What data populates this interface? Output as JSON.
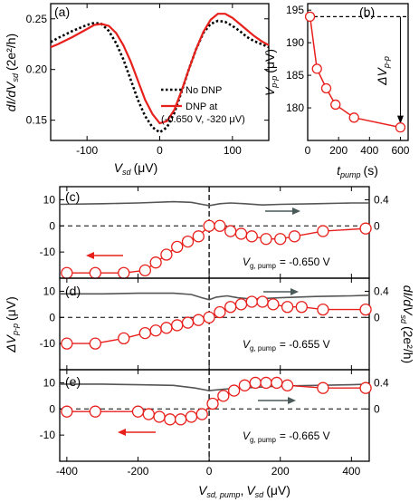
{
  "colors": {
    "dnp_red": "#e8201c",
    "no_dnp_black": "#000000",
    "trace_gray": "#555555",
    "marker_fill": "#ffffff",
    "gray_arrow": "#4a5a5a"
  },
  "chart_data": [
    {
      "panel": "(a)",
      "type": "line",
      "xlabel_main": "V",
      "xlabel_sub": "sd",
      "xlabel_unit": "(μV)",
      "ylabel_main": "dI/dV",
      "ylabel_sub": "sd",
      "ylabel_unit": "(2e²/h)",
      "xlim": [
        -150,
        150
      ],
      "ylim": [
        0.13,
        0.265
      ],
      "xticks": [
        -100,
        0,
        100
      ],
      "yticks": [
        0.15,
        0.2,
        0.25
      ],
      "ytick_labels": [
        "0.15",
        "0.20",
        "0.25"
      ],
      "legend": [
        "No DNP",
        "DNP at",
        "(-0.650 V, -320 μV)"
      ],
      "series": [
        {
          "name": "No DNP",
          "style": "dotted",
          "x": [
            -150,
            -140,
            -120,
            -100,
            -90,
            -80,
            -70,
            -60,
            -50,
            -40,
            -30,
            -20,
            -10,
            0,
            10,
            20,
            30,
            40,
            50,
            60,
            70,
            80,
            90,
            100,
            110,
            120,
            130,
            140,
            150
          ],
          "y": [
            0.227,
            0.231,
            0.238,
            0.244,
            0.246,
            0.245,
            0.238,
            0.226,
            0.21,
            0.19,
            0.17,
            0.154,
            0.143,
            0.138,
            0.143,
            0.157,
            0.178,
            0.2,
            0.22,
            0.236,
            0.245,
            0.248,
            0.247,
            0.243,
            0.238,
            0.232,
            0.228,
            0.225,
            0.222
          ]
        },
        {
          "name": "DNP at (-0.650 V, -320 μV)",
          "style": "solid",
          "x": [
            -150,
            -140,
            -120,
            -100,
            -90,
            -80,
            -70,
            -60,
            -50,
            -40,
            -30,
            -20,
            -10,
            0,
            10,
            20,
            30,
            40,
            50,
            60,
            70,
            80,
            90,
            100,
            110,
            120,
            130,
            140,
            150
          ],
          "y": [
            0.222,
            0.225,
            0.232,
            0.24,
            0.244,
            0.245,
            0.243,
            0.236,
            0.224,
            0.208,
            0.189,
            0.17,
            0.156,
            0.147,
            0.149,
            0.16,
            0.179,
            0.2,
            0.22,
            0.237,
            0.249,
            0.255,
            0.255,
            0.251,
            0.245,
            0.239,
            0.233,
            0.228,
            0.224
          ]
        }
      ]
    },
    {
      "panel": "(b)",
      "type": "line",
      "xlabel_main": "t",
      "xlabel_sub": "pump",
      "xlabel_unit": "(s)",
      "ylabel_main": "V",
      "ylabel_sub": "p-p",
      "ylabel_unit": "(μV)",
      "xlim": [
        0,
        650
      ],
      "ylim": [
        175,
        196
      ],
      "xticks": [
        0,
        200,
        400,
        600
      ],
      "yticks": [
        180,
        185,
        190,
        195
      ],
      "dashed_level": 194,
      "annotation_main": "ΔV",
      "annotation_sub": "p-p",
      "x": [
        15,
        60,
        120,
        180,
        300,
        600
      ],
      "y": [
        194,
        186,
        183,
        180.5,
        178.5,
        177
      ]
    },
    {
      "panel": "(c)",
      "type": "line",
      "xlim": [
        -420,
        450
      ],
      "ylim": [
        -20,
        15
      ],
      "yticks": [
        -10,
        0,
        10
      ],
      "right_yticks": [
        0,
        0.4
      ],
      "label_main": "V",
      "label_sub": "g, pump",
      "label_value": "= -0.650 V",
      "circles": {
        "x": [
          -400,
          -320,
          -240,
          -180,
          -150,
          -120,
          -90,
          -60,
          -30,
          0,
          30,
          60,
          90,
          120,
          160,
          200,
          240,
          320,
          440
        ],
        "y": [
          -18,
          -18,
          -18,
          -17,
          -14,
          -11,
          -8,
          -6,
          -4,
          0,
          0,
          -2,
          -3,
          -4,
          -5,
          -5,
          -4,
          -2,
          -1
        ]
      },
      "trace": {
        "x": [
          -420,
          -300,
          -200,
          -100,
          -50,
          -20,
          0,
          30,
          60,
          100,
          150,
          200,
          300,
          400,
          450
        ],
        "y": [
          0.33,
          0.34,
          0.35,
          0.37,
          0.36,
          0.33,
          0.31,
          0.34,
          0.35,
          0.34,
          0.32,
          0.33,
          0.34,
          0.35,
          0.35
        ]
      }
    },
    {
      "panel": "(d)",
      "type": "line",
      "xlim": [
        -420,
        450
      ],
      "ylim": [
        -20,
        15
      ],
      "yticks": [
        -10,
        0,
        10
      ],
      "right_yticks": [
        0,
        0.4
      ],
      "label_main": "V",
      "label_sub": "g, pump",
      "label_value": "= -0.655 V",
      "circles": {
        "x": [
          -400,
          -320,
          -240,
          -180,
          -150,
          -120,
          -90,
          -60,
          -30,
          0,
          30,
          60,
          90,
          120,
          150,
          180,
          220,
          260,
          320,
          440
        ],
        "y": [
          -10,
          -10,
          -8,
          -6,
          -5,
          -4,
          -3,
          -2,
          -1,
          0,
          2,
          4,
          5,
          6,
          6,
          5,
          4,
          4,
          3,
          3
        ]
      },
      "trace": {
        "x": [
          -420,
          -300,
          -200,
          -100,
          -50,
          -20,
          0,
          20,
          50,
          80,
          120,
          200,
          300,
          400,
          450
        ],
        "y": [
          0.36,
          0.36,
          0.37,
          0.37,
          0.35,
          0.3,
          0.27,
          0.31,
          0.33,
          0.3,
          0.28,
          0.3,
          0.32,
          0.33,
          0.34
        ]
      }
    },
    {
      "panel": "(e)",
      "type": "line",
      "xlim": [
        -420,
        450
      ],
      "ylim": [
        -20,
        15
      ],
      "yticks": [
        -10,
        0,
        10
      ],
      "right_yticks": [
        0,
        0.4
      ],
      "label_main": "V",
      "label_sub": "g, pump",
      "label_value": "= -0.665 V",
      "circles": {
        "x": [
          -400,
          -320,
          -200,
          -170,
          -140,
          -110,
          -80,
          -50,
          -20,
          10,
          40,
          70,
          100,
          130,
          160,
          190,
          220,
          320,
          440
        ],
        "y": [
          -1,
          -1,
          -1,
          -2,
          -3,
          -4,
          -4,
          -3,
          -2,
          2,
          5,
          7,
          9,
          10,
          10,
          10,
          9,
          8,
          8
        ]
      },
      "trace": {
        "x": [
          -420,
          -300,
          -200,
          -100,
          -40,
          0,
          40,
          100,
          200,
          300,
          400,
          450
        ],
        "y": [
          0.38,
          0.38,
          0.37,
          0.36,
          0.32,
          0.28,
          0.3,
          0.32,
          0.35,
          0.36,
          0.37,
          0.38
        ]
      }
    }
  ],
  "shared_bottom": {
    "xticks": [
      -400,
      -200,
      0,
      200,
      400
    ],
    "xlabel_1": "V",
    "xlabel_1_sub": "sd, pump",
    "xlabel_sep": ",",
    "xlabel_2": "V",
    "xlabel_2_sub": "sd",
    "xlabel_unit": "(μV)",
    "ylabel_left_main": "ΔV",
    "ylabel_left_sub": "p-p",
    "ylabel_left_unit": "(μV)",
    "ylabel_right_main": "dI/dV",
    "ylabel_right_sub": "sd",
    "ylabel_right_unit": "(2e²/h)"
  }
}
